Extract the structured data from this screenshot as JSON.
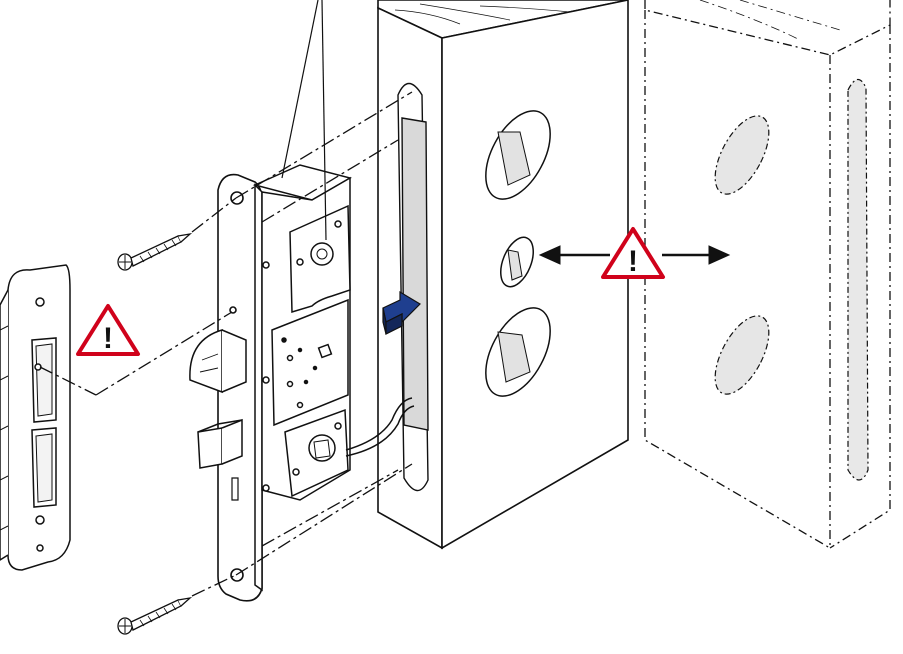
{
  "diagram": {
    "warning_symbol": "!",
    "colors": {
      "line": "#111111",
      "warning_red": "#d0021b",
      "insert_arrow_blue": "#1f3f8f",
      "insert_arrow_blue_dark": "#13275a",
      "mortise_grey": "#d9d9d9",
      "shade_grey": "#e6e6e6"
    },
    "icons": [
      "warning-triangle-icon",
      "screw-icon",
      "insert-arrow-icon",
      "double-arrow-icon"
    ]
  }
}
